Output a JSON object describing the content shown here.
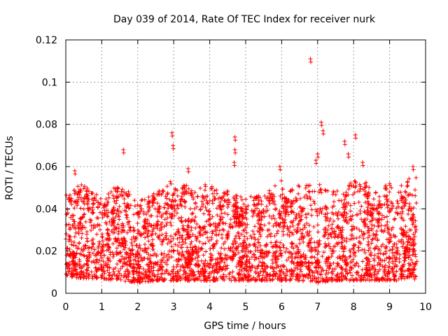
{
  "chart_data": {
    "type": "scatter",
    "title": "Day 039 of 2014, Rate Of TEC Index for receiver nurk",
    "xlabel": "GPS time / hours",
    "ylabel": "ROTI / TECUs",
    "xlim": [
      0,
      10
    ],
    "ylim": [
      0,
      0.12
    ],
    "xticks": [
      "0",
      "1",
      "2",
      "3",
      "4",
      "5",
      "6",
      "7",
      "8",
      "9",
      "10"
    ],
    "yticks": [
      "0",
      "0.02",
      "0.04",
      "0.06",
      "0.08",
      "0.1",
      "0.12"
    ],
    "grid": true,
    "marker": "+",
    "series_color": "#ff0000",
    "x_range_of_data": [
      0,
      9.75
    ],
    "highlighted_points": [
      {
        "x": 6.8,
        "y": 0.111
      },
      {
        "x": 7.1,
        "y": 0.081
      },
      {
        "x": 7.15,
        "y": 0.077
      },
      {
        "x": 8.05,
        "y": 0.075
      },
      {
        "x": 2.95,
        "y": 0.076
      },
      {
        "x": 4.7,
        "y": 0.074
      },
      {
        "x": 7.75,
        "y": 0.072
      },
      {
        "x": 2.98,
        "y": 0.07
      },
      {
        "x": 4.7,
        "y": 0.068
      },
      {
        "x": 1.6,
        "y": 0.068
      },
      {
        "x": 7.0,
        "y": 0.066
      },
      {
        "x": 7.85,
        "y": 0.066
      },
      {
        "x": 4.68,
        "y": 0.062
      },
      {
        "x": 8.25,
        "y": 0.062
      },
      {
        "x": 6.95,
        "y": 0.063
      },
      {
        "x": 9.65,
        "y": 0.06
      },
      {
        "x": 0.25,
        "y": 0.058
      },
      {
        "x": 3.4,
        "y": 0.059
      },
      {
        "x": 5.95,
        "y": 0.06
      }
    ],
    "envelope": {
      "hours": [
        0,
        0.5,
        1,
        1.5,
        2,
        2.5,
        3,
        3.5,
        4,
        4.5,
        5,
        5.5,
        6,
        6.5,
        7,
        7.5,
        8,
        8.5,
        9,
        9.5,
        9.75
      ],
      "typical_min": [
        0.008,
        0.007,
        0.007,
        0.006,
        0.005,
        0.006,
        0.006,
        0.006,
        0.006,
        0.006,
        0.006,
        0.006,
        0.006,
        0.006,
        0.005,
        0.006,
        0.006,
        0.006,
        0.006,
        0.007,
        0.008
      ],
      "typical_max": [
        0.048,
        0.052,
        0.046,
        0.052,
        0.044,
        0.048,
        0.054,
        0.05,
        0.052,
        0.048,
        0.046,
        0.046,
        0.054,
        0.052,
        0.052,
        0.05,
        0.054,
        0.05,
        0.052,
        0.054,
        0.056
      ]
    }
  }
}
